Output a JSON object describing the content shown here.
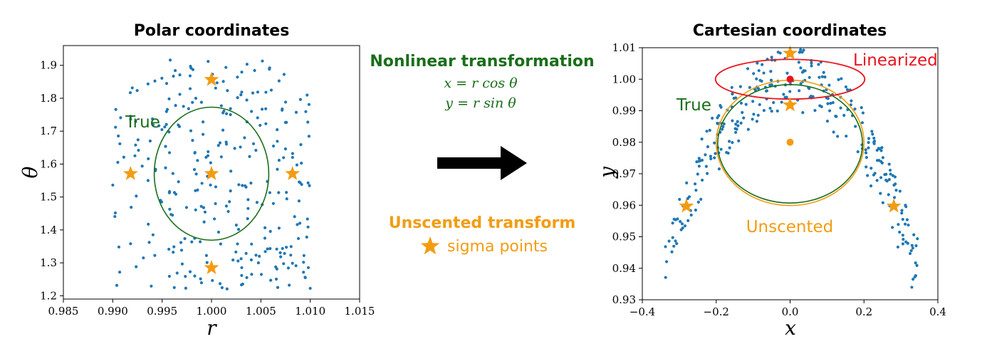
{
  "colors": {
    "scatter": "#1f77b4",
    "true": "#1a6e1a",
    "unscented": "#f39c12",
    "linearized": "#e8141c",
    "arrow": "#000000"
  },
  "middle": {
    "nonlinear_title": "Nonlinear transformation",
    "formula_x": "x = r cos θ",
    "formula_y": "y = r sin θ",
    "unscented_title": "Unscented transform",
    "sigma_label": "sigma points",
    "star_icon": "star-icon",
    "arrow_icon": "right-arrow-icon"
  },
  "chart_data": [
    {
      "type": "scatter",
      "title": "Polar coordinates",
      "xlabel": "r",
      "ylabel": "θ",
      "xlim": [
        0.985,
        1.015
      ],
      "ylim": [
        1.19,
        1.96
      ],
      "xticks": [
        0.985,
        0.99,
        0.995,
        1.0,
        1.005,
        1.01,
        1.015
      ],
      "xtick_labels": [
        "0.985",
        "0.990",
        "0.995",
        "1.000",
        "1.005",
        "1.010",
        "1.015"
      ],
      "yticks": [
        1.2,
        1.3,
        1.4,
        1.5,
        1.6,
        1.7,
        1.8,
        1.9
      ],
      "ytick_labels": [
        "1.2",
        "1.3",
        "1.4",
        "1.5",
        "1.6",
        "1.7",
        "1.8",
        "1.9"
      ],
      "samples": {
        "distribution": "uniform",
        "r_range": [
          0.99,
          1.01
        ],
        "theta_range": [
          1.22,
          1.92
        ],
        "count": 300
      },
      "sigma_points": [
        [
          1.0,
          1.5708
        ],
        [
          0.9918,
          1.5708
        ],
        [
          1.0082,
          1.5708
        ],
        [
          1.0,
          1.8566
        ],
        [
          1.0,
          1.285
        ]
      ],
      "true_ellipse": {
        "center": [
          1.0,
          1.5708
        ],
        "radius_x": 0.0058,
        "radius_y": 0.2021
      },
      "annotations": [
        "True"
      ]
    },
    {
      "type": "scatter",
      "title": "Cartesian coordinates",
      "xlabel": "x",
      "ylabel": "y",
      "xlim": [
        -0.4,
        0.4
      ],
      "ylim": [
        0.93,
        1.01
      ],
      "xticks": [
        -0.4,
        -0.2,
        0.0,
        0.2,
        0.4
      ],
      "xtick_labels": [
        "−0.4",
        "−0.2",
        "0.0",
        "0.2",
        "0.4"
      ],
      "yticks": [
        0.93,
        0.94,
        0.95,
        0.96,
        0.97,
        0.98,
        0.99,
        1.0,
        1.01
      ],
      "ytick_labels": [
        "0.93",
        "0.94",
        "0.95",
        "0.96",
        "0.97",
        "0.98",
        "0.99",
        "1.00",
        "1.01"
      ],
      "sigma_points": [
        [
          0.0,
          1.0082
        ],
        [
          0.0,
          0.9918
        ],
        [
          -0.2808,
          0.9597
        ],
        [
          0.2808,
          0.9597
        ]
      ],
      "means": [
        {
          "name": "Unscented",
          "point": [
            0.0,
            0.98
          ]
        },
        {
          "name": "Linearized",
          "point": [
            0.0,
            1.0
          ]
        }
      ],
      "ellipses": [
        {
          "name": "True",
          "center": [
            0.0,
            0.9795
          ],
          "radius_x": 0.196,
          "radius_y": 0.0188
        },
        {
          "name": "Unscented",
          "center": [
            0.0,
            0.9798
          ],
          "radius_x": 0.2,
          "radius_y": 0.0199
        },
        {
          "name": "Linearized",
          "center": [
            0.0,
            1.0
          ],
          "radius_x": 0.202,
          "radius_y": 0.0063
        }
      ],
      "annotations": [
        "True",
        "Unscented",
        "Linearized"
      ]
    }
  ]
}
